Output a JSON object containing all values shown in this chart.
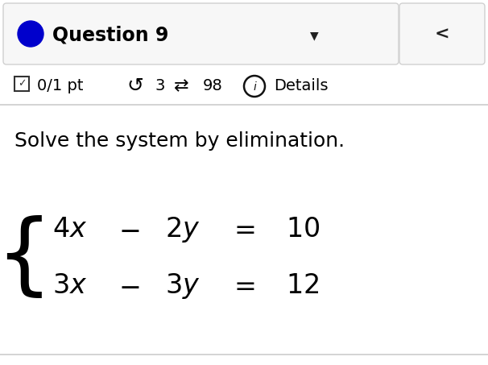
{
  "background_color": "#ffffff",
  "top_bar_border": "#d0d0d0",
  "top_bar_bg": "#f5f5f5",
  "question_text": "Question 9",
  "question_dot_color": "#0000cc",
  "text_color": "#000000",
  "meta_checkbox": "✓",
  "meta_0_1_pt": "0/1 pt",
  "meta_undo": "↺",
  "meta_3": "3",
  "meta_arrows": "⇄",
  "meta_98": "98",
  "meta_details": "Details",
  "instruction": "Solve the system by elimination.",
  "eq1": [
    "4x",
    "-",
    "2y",
    "=",
    "10"
  ],
  "eq2": [
    "3x",
    "-",
    "3y",
    "=",
    "12"
  ],
  "font_size_question": 17,
  "font_size_meta": 14,
  "font_size_instruction": 18,
  "font_size_eq": 24,
  "font_size_brace": 80
}
